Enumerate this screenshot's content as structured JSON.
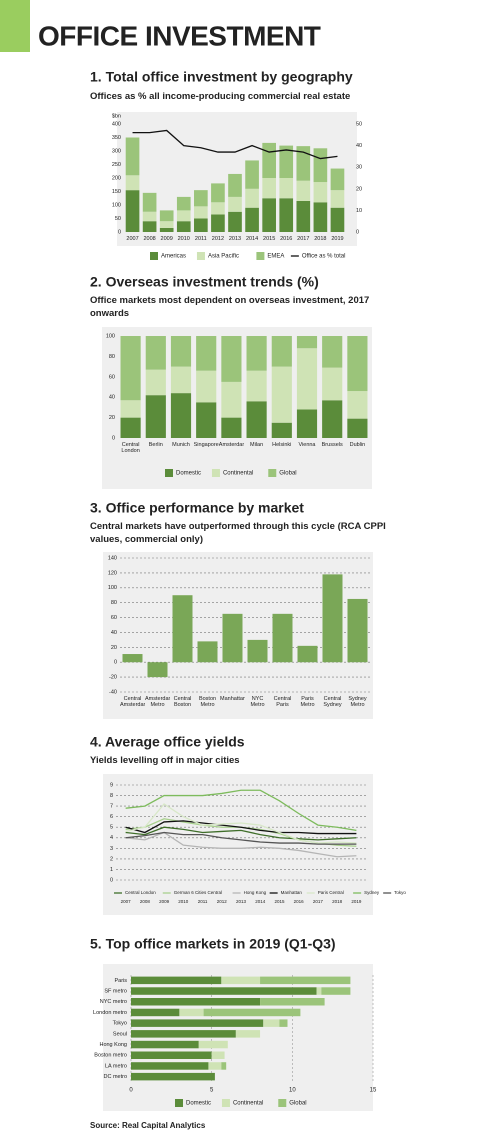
{
  "header": {
    "title": "OFFICE INVESTMENT"
  },
  "chart_data": [
    {
      "type": "bar",
      "stacked": true,
      "title": "1. Total office investment by geography",
      "subtitle": "Offices as % all income-producing commercial real estate",
      "ylabel": "$bn",
      "categories": [
        "2007",
        "2008",
        "2009",
        "2010",
        "2011",
        "2012",
        "2013",
        "2014",
        "2015",
        "2016",
        "2017",
        "2018",
        "2019"
      ],
      "series": [
        {
          "name": "Americas",
          "color": "#5b8c3a",
          "values": [
            155,
            40,
            15,
            40,
            50,
            65,
            75,
            90,
            125,
            125,
            115,
            110,
            90
          ]
        },
        {
          "name": "Asia Pacific",
          "color": "#cfe3b5",
          "values": [
            55,
            35,
            25,
            40,
            45,
            45,
            55,
            70,
            75,
            75,
            75,
            75,
            65
          ]
        },
        {
          "name": "EMEA",
          "color": "#9bc47a",
          "values": [
            140,
            70,
            40,
            50,
            60,
            70,
            85,
            105,
            130,
            120,
            128,
            125,
            80
          ]
        },
        {
          "name": "Office as % total",
          "color": "#111111",
          "axis": "y2",
          "values": [
            46,
            46,
            47,
            40,
            39,
            37,
            37,
            40,
            37,
            38,
            37,
            34,
            35
          ]
        }
      ],
      "ylim": [
        0,
        400
      ],
      "yticks": [
        0,
        50,
        100,
        150,
        200,
        250,
        300,
        350,
        400
      ],
      "y2lim": [
        0,
        50
      ],
      "y2ticks": [
        0,
        10,
        20,
        30,
        40,
        50
      ]
    },
    {
      "type": "bar",
      "stacked": true,
      "title": "2. Overseas investment trends (%)",
      "subtitle": "Office markets most dependent on overseas investment, 2017 onwards",
      "categories": [
        "Central London",
        "Berlin",
        "Munich",
        "Singapore",
        "Amsterdam",
        "Milan",
        "Helsinki",
        "Vienna",
        "Brussels",
        "Dublin"
      ],
      "series": [
        {
          "name": "Domestic",
          "color": "#5b8c3a",
          "values": [
            20,
            42,
            44,
            35,
            20,
            36,
            15,
            28,
            37,
            19
          ]
        },
        {
          "name": "Continental",
          "color": "#cfe3b5",
          "values": [
            17,
            25,
            26,
            31,
            35,
            30,
            55,
            60,
            32,
            27
          ]
        },
        {
          "name": "Global",
          "color": "#9bc47a",
          "values": [
            63,
            33,
            30,
            34,
            45,
            34,
            30,
            12,
            31,
            54
          ]
        }
      ],
      "ylim": [
        0,
        100
      ],
      "yticks": [
        0,
        20,
        40,
        60,
        80,
        100
      ]
    },
    {
      "type": "bar",
      "title": "3. Office performance by market",
      "subtitle": "Central markets have outperformed through this cycle (RCA CPPI values, commercial only)",
      "categories": [
        "Central Amsterdam",
        "Amsterdam Metro",
        "Central Boston",
        "Boston Metro",
        "Manhattan",
        "NYC Metro",
        "Central Paris",
        "Paris Metro",
        "Central Sydney",
        "Sydney Metro"
      ],
      "values": [
        11,
        -20,
        90,
        28,
        65,
        30,
        65,
        22,
        118,
        85
      ],
      "color": "#7aa757",
      "ylim": [
        -40,
        140
      ],
      "yticks": [
        -40,
        -20,
        0,
        20,
        40,
        60,
        80,
        100,
        120,
        140
      ],
      "grid": true
    },
    {
      "type": "line",
      "title": "4. Average office yields",
      "subtitle": "Yields levelling off in major cities",
      "categories": [
        "2007",
        "2008",
        "2009",
        "2010",
        "2011",
        "2012",
        "2013",
        "2014",
        "2015",
        "2016",
        "2017",
        "2018",
        "2019"
      ],
      "series": [
        {
          "name": "Central London",
          "color": "#3f6e2a",
          "values": [
            4.5,
            4.3,
            5.0,
            4.8,
            4.5,
            4.6,
            4.7,
            4.3,
            4.0,
            3.9,
            3.8,
            3.9,
            4.0
          ]
        },
        {
          "name": "German 6 Cities Central",
          "color": "#a8d08d",
          "values": [
            4.8,
            5.0,
            5.8,
            5.5,
            5.2,
            5.0,
            5.0,
            4.8,
            4.4,
            3.8,
            3.5,
            3.3,
            3.2
          ]
        },
        {
          "name": "Hong Kong",
          "color": "#b5b5b5",
          "values": [
            4.0,
            3.8,
            4.5,
            3.3,
            3.1,
            3.0,
            3.0,
            3.1,
            3.0,
            2.8,
            2.5,
            2.2,
            2.3
          ]
        },
        {
          "name": "Manhattan",
          "color": "#111111",
          "values": [
            5.0,
            4.5,
            5.5,
            5.6,
            5.4,
            5.2,
            5.0,
            4.7,
            4.5,
            4.5,
            4.4,
            4.4,
            4.4
          ]
        },
        {
          "name": "Paris Central",
          "color": "#d8e8c8",
          "values": [
            4.6,
            5.0,
            7.2,
            6.0,
            5.2,
            5.3,
            5.4,
            5.2,
            4.5,
            3.8,
            3.5,
            3.6,
            3.5
          ]
        },
        {
          "name": "Sydney",
          "color": "#7dbb5c",
          "values": [
            6.8,
            7.0,
            8.0,
            8.0,
            8.0,
            8.2,
            8.5,
            8.5,
            7.5,
            6.3,
            5.2,
            5.0,
            4.7
          ]
        },
        {
          "name": "Tokyo",
          "color": "#555555",
          "values": [
            4.0,
            4.2,
            4.5,
            4.3,
            4.3,
            4.0,
            3.8,
            3.6,
            3.5,
            3.5,
            3.4,
            3.4,
            3.4
          ]
        }
      ],
      "ylim": [
        0,
        9
      ],
      "yticks": [
        0,
        1,
        2,
        3,
        4,
        5,
        6,
        7,
        8,
        9
      ],
      "grid": true
    },
    {
      "type": "hbar",
      "stacked": true,
      "title": "5. Top office markets in 2019 (Q1-Q3)",
      "categories": [
        "Paris",
        "SF metro",
        "NYC metro",
        "London metro",
        "Tokyo",
        "Seoul",
        "Hong Kong",
        "Boston metro",
        "LA metro",
        "DC metro"
      ],
      "series": [
        {
          "name": "Domestic",
          "color": "#5b8c3a",
          "values": [
            5.6,
            11.5,
            8,
            3,
            8.2,
            6.5,
            4.2,
            5,
            4.8,
            5.2
          ]
        },
        {
          "name": "Continental",
          "color": "#cfe3b5",
          "values": [
            2.4,
            0.3,
            0,
            1.5,
            1,
            1.5,
            1.8,
            0.8,
            0.8,
            0
          ]
        },
        {
          "name": "Global",
          "color": "#9bc47a",
          "values": [
            5.6,
            1.8,
            4,
            6,
            0.5,
            0,
            0,
            0,
            0.3,
            0
          ]
        }
      ],
      "xlim": [
        0,
        15
      ],
      "xticks": [
        0,
        5,
        10,
        15
      ],
      "grid": true
    }
  ],
  "source": "Source: Real Capital Analytics"
}
